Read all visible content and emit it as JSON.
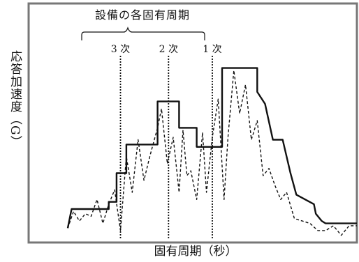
{
  "chart_data": {
    "type": "line",
    "title": "",
    "xlabel": "固有周期（秒）",
    "ylabel": "応答加速度（G）",
    "annotation_group": "設備の各固有周期",
    "mode_lines": [
      {
        "label": "3 次",
        "x": 2.35
      },
      {
        "label": "2 次",
        "x": 3.58
      },
      {
        "label": "1 次",
        "x": 4.7
      }
    ],
    "xlim": [
      0,
      8.4
    ],
    "ylim": [
      0,
      1
    ],
    "grid": false,
    "series": [
      {
        "style": "solid",
        "x": [
          1.0,
          1.1,
          1.7,
          1.7,
          2.05,
          2.05,
          2.25,
          2.25,
          2.5,
          2.5,
          3.3,
          3.3,
          3.85,
          3.85,
          4.3,
          4.3,
          4.95,
          4.95,
          5.2,
          5.2,
          5.85,
          5.85,
          6.05,
          6.25,
          6.5,
          6.7,
          6.85,
          7.3,
          7.35,
          7.5,
          7.6,
          8.4
        ],
        "y": [
          0.06,
          0.14,
          0.14,
          0.14,
          0.14,
          0.17,
          0.17,
          0.29,
          0.29,
          0.41,
          0.41,
          0.59,
          0.59,
          0.48,
          0.48,
          0.4,
          0.4,
          0.73,
          0.73,
          0.73,
          0.73,
          0.63,
          0.58,
          0.43,
          0.43,
          0.29,
          0.2,
          0.16,
          0.12,
          0.09,
          0.08,
          0.08
        ]
      },
      {
        "style": "dashed",
        "x": [
          1.0,
          1.15,
          1.3,
          1.45,
          1.6,
          1.75,
          1.9,
          2.05,
          2.2,
          2.35,
          2.5,
          2.65,
          2.8,
          2.95,
          3.1,
          3.2,
          3.3,
          3.4,
          3.55,
          3.7,
          3.85,
          3.95,
          4.05,
          4.15,
          4.3,
          4.45,
          4.55,
          4.7,
          4.85,
          5.0,
          5.1,
          5.25,
          5.4,
          5.55,
          5.7,
          5.85,
          6.0,
          6.15,
          6.3,
          6.45,
          6.6,
          6.8,
          7.0,
          7.2,
          7.4,
          7.6,
          7.8,
          8.0,
          8.2,
          8.4
        ],
        "y": [
          0.06,
          0.13,
          0.09,
          0.12,
          0.11,
          0.18,
          0.08,
          0.16,
          0.22,
          0.05,
          0.36,
          0.21,
          0.43,
          0.26,
          0.36,
          0.42,
          0.48,
          0.56,
          0.33,
          0.44,
          0.21,
          0.47,
          0.28,
          0.3,
          0.18,
          0.46,
          0.21,
          0.44,
          0.6,
          0.18,
          0.44,
          0.72,
          0.54,
          0.66,
          0.43,
          0.51,
          0.28,
          0.31,
          0.24,
          0.18,
          0.21,
          0.1,
          0.09,
          0.08,
          0.05,
          0.05,
          0.07,
          0.03,
          0.07,
          0.07
        ]
      }
    ],
    "colors": {
      "line": "#111111",
      "frame": "#777777",
      "mode_line": "#111111"
    }
  }
}
